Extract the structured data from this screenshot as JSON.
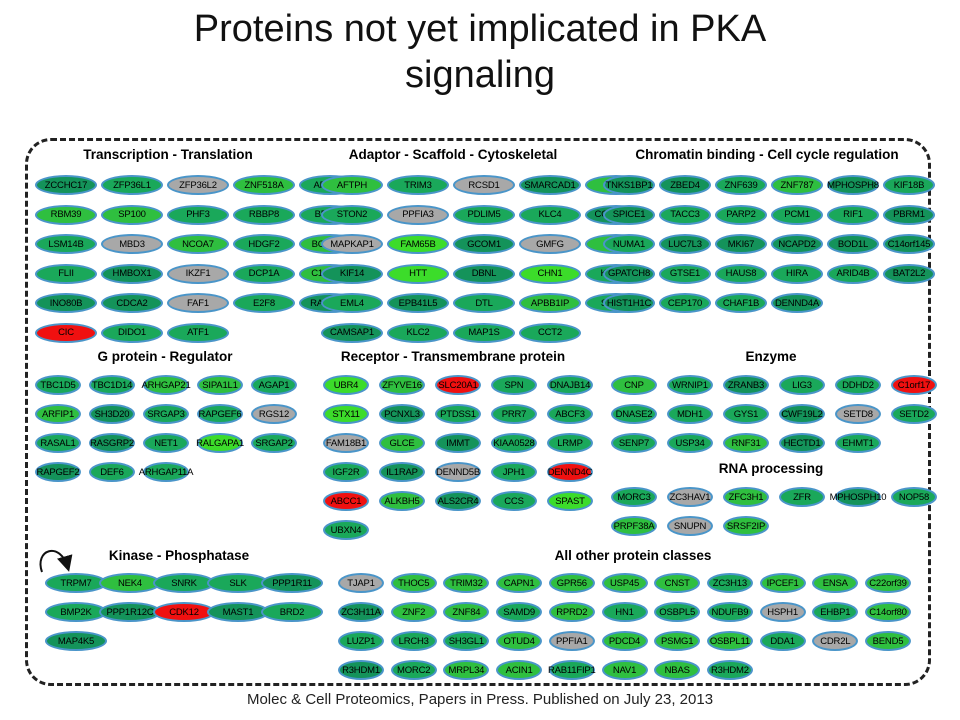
{
  "header": {
    "title_line1": "Proteins not yet implicated in PKA",
    "title_line2": "signaling"
  },
  "footer": {
    "source": "Molec & Cell Proteomics, Papers in Press. Published on July 23, 2013"
  },
  "colors": {
    "dark_green": "#14935a",
    "mid_green": "#1aa85a",
    "green": "#2fbf3f",
    "bright_green": "#3cdc2a",
    "gray": "#a8a8a8",
    "red": "#f01010",
    "node_border": "#4a95c9"
  },
  "sections": [
    {
      "title": "Transcription - Translation",
      "rows": [
        [
          [
            "ZCCHC17",
            "dark_green"
          ],
          [
            "ZFP36L1",
            "mid_green"
          ],
          [
            "ZFP36L2",
            "gray"
          ],
          [
            "ZNF518A",
            "green"
          ],
          [
            "ARID5B",
            "mid_green"
          ]
        ],
        [
          [
            "RBM39",
            "green"
          ],
          [
            "SP100",
            "green"
          ],
          [
            "PHF3",
            "mid_green"
          ],
          [
            "RBBP8",
            "mid_green"
          ],
          [
            "BRCA2",
            "mid_green"
          ]
        ],
        [
          [
            "LSM14B",
            "mid_green"
          ],
          [
            "MBD3",
            "gray"
          ],
          [
            "NCOA7",
            "green"
          ],
          [
            "HDGF2",
            "mid_green"
          ],
          [
            "BCORL1",
            "green"
          ]
        ],
        [
          [
            "FLII",
            "mid_green"
          ],
          [
            "HMBOX1",
            "dark_green"
          ],
          [
            "IKZF1",
            "gray"
          ],
          [
            "DCP1A",
            "mid_green"
          ],
          [
            "C1orf103",
            "green"
          ]
        ],
        [
          [
            "INO80B",
            "dark_green"
          ],
          [
            "CDCA2",
            "dark_green"
          ],
          [
            "FAF1",
            "gray"
          ],
          [
            "E2F8",
            "mid_green"
          ],
          [
            "RAD54L2",
            "dark_green"
          ]
        ],
        [
          [
            "CIC",
            "red"
          ],
          [
            "DIDO1",
            "mid_green"
          ],
          [
            "ATF1",
            "mid_green"
          ]
        ]
      ]
    },
    {
      "title": "Adaptor - Scaffold - Cytoskeletal",
      "rows": [
        [
          [
            "AFTPH",
            "green"
          ],
          [
            "TRIM3",
            "mid_green"
          ],
          [
            "RCSD1",
            "gray"
          ],
          [
            "SMARCAD1",
            "dark_green"
          ],
          [
            "CGN",
            "green"
          ]
        ],
        [
          [
            "STON2",
            "mid_green"
          ],
          [
            "PPFIA3",
            "gray"
          ],
          [
            "PDLIM5",
            "mid_green"
          ],
          [
            "KLC4",
            "mid_green"
          ],
          [
            "CCDC88B",
            "dark_green"
          ]
        ],
        [
          [
            "MAPKAP1",
            "gray"
          ],
          [
            "FAM65B",
            "bright_green"
          ],
          [
            "GCOM1",
            "dark_green"
          ],
          [
            "GMFG",
            "gray"
          ],
          [
            "JMY",
            "green"
          ]
        ],
        [
          [
            "KIF14",
            "dark_green"
          ],
          [
            "HTT",
            "bright_green"
          ],
          [
            "DBNL",
            "dark_green"
          ],
          [
            "CHN1",
            "bright_green"
          ],
          [
            "KIFAP3",
            "mid_green"
          ]
        ],
        [
          [
            "EML4",
            "mid_green"
          ],
          [
            "EPB41L5",
            "dark_green"
          ],
          [
            "DTL",
            "mid_green"
          ],
          [
            "APBB1IP",
            "green"
          ],
          [
            "SASH3",
            "mid_green"
          ]
        ],
        [
          [
            "CAMSAP1",
            "dark_green"
          ],
          [
            "KLC2",
            "mid_green"
          ],
          [
            "MAP1S",
            "mid_green"
          ],
          [
            "CCT2",
            "mid_green"
          ]
        ]
      ]
    },
    {
      "title": "Chromatin binding - Cell cycle regulation",
      "rows": [
        [
          [
            "TNKS1BP1",
            "dark_green"
          ],
          [
            "ZBED4",
            "dark_green"
          ],
          [
            "ZNF639",
            "mid_green"
          ],
          [
            "ZNF787",
            "green"
          ],
          [
            "MPHOSPH8",
            "dark_green"
          ],
          [
            "KIF18B",
            "mid_green"
          ]
        ],
        [
          [
            "SPICE1",
            "dark_green"
          ],
          [
            "TACC3",
            "mid_green"
          ],
          [
            "PARP2",
            "mid_green"
          ],
          [
            "PCM1",
            "mid_green"
          ],
          [
            "RIF1",
            "mid_green"
          ],
          [
            "PBRM1",
            "dark_green"
          ]
        ],
        [
          [
            "NUMA1",
            "mid_green"
          ],
          [
            "LUC7L3",
            "dark_green"
          ],
          [
            "MKI67",
            "dark_green"
          ],
          [
            "NCAPD2",
            "dark_green"
          ],
          [
            "BOD1L",
            "dark_green"
          ],
          [
            "C14orf145",
            "dark_green"
          ]
        ],
        [
          [
            "GPATCH8",
            "dark_green"
          ],
          [
            "GTSE1",
            "mid_green"
          ],
          [
            "HAUS8",
            "mid_green"
          ],
          [
            "HIRA",
            "mid_green"
          ],
          [
            "ARID4B",
            "mid_green"
          ],
          [
            "BAT2L2",
            "dark_green"
          ]
        ],
        [
          [
            "HIST1H1C",
            "dark_green"
          ],
          [
            "CEP170",
            "mid_green"
          ],
          [
            "CHAF1B",
            "mid_green"
          ],
          [
            "DENND4A",
            "dark_green"
          ]
        ]
      ]
    },
    {
      "title": "G protein - Regulator",
      "rows": [
        [
          [
            "TBC1D5",
            "mid_green"
          ],
          [
            "TBC1D14",
            "mid_green"
          ],
          [
            "ARHGAP21",
            "green"
          ],
          [
            "SIPA1L1",
            "green"
          ],
          [
            "AGAP1",
            "mid_green"
          ]
        ],
        [
          [
            "ARFIP1",
            "green"
          ],
          [
            "SH3D20",
            "dark_green"
          ],
          [
            "SRGAP3",
            "mid_green"
          ],
          [
            "RAPGEF6",
            "mid_green"
          ],
          [
            "RGS12",
            "gray"
          ]
        ],
        [
          [
            "RASAL1",
            "mid_green"
          ],
          [
            "RASGRP2",
            "dark_green"
          ],
          [
            "NET1",
            "mid_green"
          ],
          [
            "RALGAPA1",
            "bright_green"
          ],
          [
            "SRGAP2",
            "mid_green"
          ]
        ],
        [
          [
            "RAPGEF2",
            "dark_green"
          ],
          [
            "DEF6",
            "mid_green"
          ],
          [
            "ARHGAP11A",
            "mid_green"
          ]
        ]
      ]
    },
    {
      "title": "Receptor - Transmembrane protein",
      "rows": [
        [
          [
            "UBR4",
            "bright_green"
          ],
          [
            "ZFYVE16",
            "green"
          ],
          [
            "SLC20A1",
            "red"
          ],
          [
            "SPN",
            "mid_green"
          ],
          [
            "DNAJB14",
            "mid_green"
          ]
        ],
        [
          [
            "STX11",
            "bright_green"
          ],
          [
            "PCNXL3",
            "dark_green"
          ],
          [
            "PTDSS1",
            "mid_green"
          ],
          [
            "PRR7",
            "mid_green"
          ],
          [
            "ABCF3",
            "mid_green"
          ]
        ],
        [
          [
            "FAM18B1",
            "gray"
          ],
          [
            "GLCE",
            "green"
          ],
          [
            "IMMT",
            "dark_green"
          ],
          [
            "KIAA0528",
            "mid_green"
          ],
          [
            "LRMP",
            "mid_green"
          ]
        ],
        [
          [
            "IGF2R",
            "mid_green"
          ],
          [
            "IL1RAP",
            "dark_green"
          ],
          [
            "DENND5B",
            "gray"
          ],
          [
            "JPH1",
            "mid_green"
          ],
          [
            "DENND4C",
            "red"
          ]
        ],
        [
          [
            "ABCC1",
            "red"
          ],
          [
            "ALKBH5",
            "green"
          ],
          [
            "ALS2CR4",
            "dark_green"
          ],
          [
            "CCS",
            "mid_green"
          ],
          [
            "SPAST",
            "bright_green"
          ]
        ],
        [
          [
            "UBXN4",
            "mid_green"
          ]
        ]
      ]
    },
    {
      "title": "Enzyme",
      "rows": [
        [
          [
            "CNP",
            "green"
          ],
          [
            "WRNIP1",
            "mid_green"
          ],
          [
            "ZRANB3",
            "dark_green"
          ],
          [
            "LIG3",
            "mid_green"
          ],
          [
            "DDHD2",
            "mid_green"
          ],
          [
            "C1orf17",
            "red"
          ]
        ],
        [
          [
            "DNASE2",
            "mid_green"
          ],
          [
            "MDH1",
            "mid_green"
          ],
          [
            "GYS1",
            "mid_green"
          ],
          [
            "CWF19L2",
            "dark_green"
          ],
          [
            "SETD8",
            "gray"
          ],
          [
            "SETD2",
            "mid_green"
          ]
        ],
        [
          [
            "SENP7",
            "mid_green"
          ],
          [
            "USP34",
            "mid_green"
          ],
          [
            "RNF31",
            "green"
          ],
          [
            "HECTD1",
            "dark_green"
          ],
          [
            "EHMT1",
            "mid_green"
          ]
        ]
      ]
    },
    {
      "title": "RNA processing",
      "rows": [
        [
          [
            "MORC3",
            "mid_green"
          ],
          [
            "ZC3HAV1",
            "gray"
          ],
          [
            "ZFC3H1",
            "green"
          ],
          [
            "ZFR",
            "mid_green"
          ],
          [
            "MPHOSPH10",
            "dark_green"
          ],
          [
            "NOP58",
            "mid_green"
          ]
        ],
        [
          [
            "PRPF38A",
            "green"
          ],
          [
            "SNUPN",
            "gray"
          ],
          [
            "SRSF2IP",
            "green"
          ]
        ]
      ]
    },
    {
      "title": "Kinase - Phosphatase",
      "rows": [
        [
          [
            "TRPM7",
            "mid_green"
          ],
          [
            "NEK4",
            "green"
          ],
          [
            "SNRK",
            "mid_green"
          ],
          [
            "SLK",
            "mid_green"
          ],
          [
            "PPP1R11",
            "dark_green"
          ]
        ],
        [
          [
            "BMP2K",
            "mid_green"
          ],
          [
            "PPP1R12C",
            "dark_green"
          ],
          [
            "CDK12",
            "red"
          ],
          [
            "MAST1",
            "dark_green"
          ],
          [
            "BRD2",
            "mid_green"
          ]
        ],
        [
          [
            "MAP4K5",
            "dark_green"
          ]
        ]
      ]
    },
    {
      "title": "All other protein classes",
      "rows": [
        [
          [
            "TJAP1",
            "gray"
          ],
          [
            "THOC5",
            "green"
          ],
          [
            "TRIM32",
            "green"
          ],
          [
            "CAPN1",
            "green"
          ],
          [
            "GPR56",
            "green"
          ],
          [
            "USP45",
            "green"
          ],
          [
            "CNST",
            "green"
          ],
          [
            "ZC3H13",
            "mid_green"
          ],
          [
            "IPCEF1",
            "green"
          ],
          [
            "ENSA",
            "green"
          ],
          [
            "C22orf39",
            "green"
          ]
        ],
        [
          [
            "ZC3H11A",
            "dark_green"
          ],
          [
            "ZNF2",
            "green"
          ],
          [
            "ZNF84",
            "green"
          ],
          [
            "SAMD9",
            "mid_green"
          ],
          [
            "RPRD2",
            "green"
          ],
          [
            "HN1",
            "mid_green"
          ],
          [
            "OSBPL5",
            "mid_green"
          ],
          [
            "NDUFB9",
            "mid_green"
          ],
          [
            "HSPH1",
            "gray"
          ],
          [
            "EHBP1",
            "mid_green"
          ],
          [
            "C14orf80",
            "green"
          ]
        ],
        [
          [
            "LUZP1",
            "mid_green"
          ],
          [
            "LRCH3",
            "mid_green"
          ],
          [
            "SH3GL1",
            "mid_green"
          ],
          [
            "OTUD4",
            "green"
          ],
          [
            "PPFIA1",
            "gray"
          ],
          [
            "PDCD4",
            "green"
          ],
          [
            "PSMG1",
            "green"
          ],
          [
            "OSBPL11",
            "green"
          ],
          [
            "DDA1",
            "mid_green"
          ],
          [
            "CDR2L",
            "gray"
          ],
          [
            "BEND5",
            "green"
          ]
        ],
        [
          [
            "R3HDM1",
            "dark_green"
          ],
          [
            "MORC2",
            "mid_green"
          ],
          [
            "MRPL34",
            "green"
          ],
          [
            "ACIN1",
            "green"
          ],
          [
            "RAB11FIP1",
            "mid_green"
          ],
          [
            "NAV1",
            "green"
          ],
          [
            "NBAS",
            "green"
          ],
          [
            "R3HDM2",
            "mid_green"
          ]
        ]
      ]
    }
  ]
}
